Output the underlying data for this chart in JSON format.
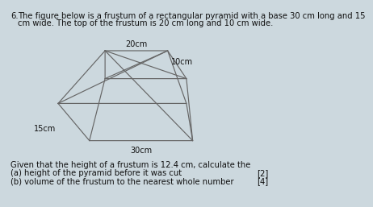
{
  "title_number": "6.",
  "title_text1": "The figure below is a frustum of a rectangular pyramid with a base 30 cm long and 15",
  "title_text2": "cm wide. The top of the frustum is 20 cm long and 10 cm wide.",
  "given_line0": "Given that the height of a frustum is 12.4 cm, calculate the",
  "given_line1": "(a) height of the pyramid before it was cut",
  "given_line2": "(b) volume of the frustum to the nearest whole number",
  "marks_a": "[2]",
  "marks_b": "[4]",
  "label_20cm": "20cm",
  "label_10cm": "10cm",
  "label_15cm": "15cm",
  "label_30cm": "30cm",
  "bg_color": "#ccd8de",
  "line_color": "#666666",
  "text_color": "#111111",
  "font_size_body": 7.2,
  "font_size_label": 7.0
}
